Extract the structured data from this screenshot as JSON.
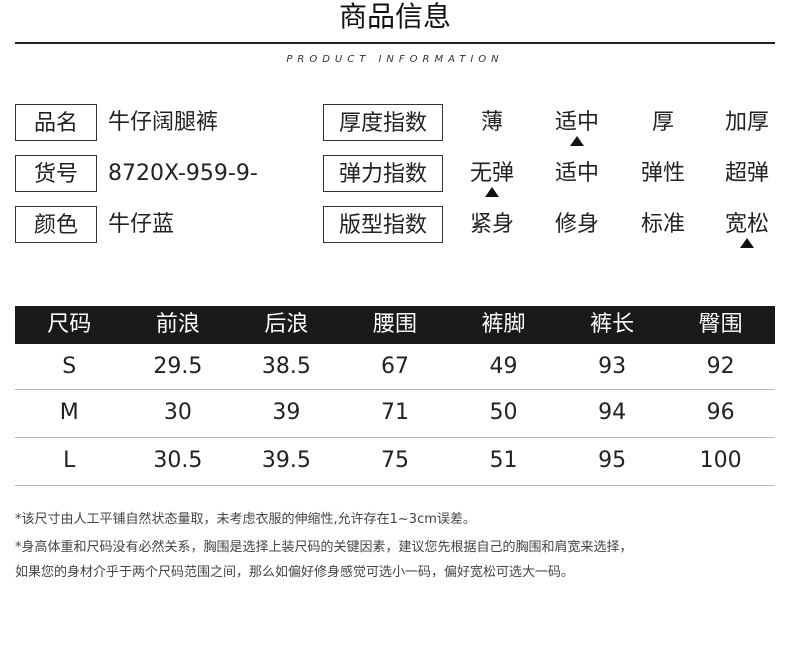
{
  "header": {
    "title": "商品信息",
    "subtitle": "PRODUCT INFORMATION"
  },
  "info": [
    {
      "label": "品名",
      "value": "牛仔阔腿裤"
    },
    {
      "label": "货号",
      "value": "8720X-959-9-"
    },
    {
      "label": "颜色",
      "value": "牛仔蓝"
    }
  ],
  "indices": [
    {
      "label": "厚度指数",
      "options": [
        "薄",
        "适中",
        "厚",
        "加厚"
      ],
      "selected": 1
    },
    {
      "label": "弹力指数",
      "options": [
        "无弹",
        "适中",
        "弹性",
        "超弹"
      ],
      "selected": 0
    },
    {
      "label": "版型指数",
      "options": [
        "紧身",
        "修身",
        "标准",
        "宽松"
      ],
      "selected": 3
    }
  ],
  "size_table": {
    "headers": [
      "尺码",
      "前浪",
      "后浪",
      "腰围",
      "裤脚",
      "裤长",
      "臀围"
    ],
    "rows": [
      [
        "S",
        "29.5",
        "38.5",
        "67",
        "49",
        "93",
        "92"
      ],
      [
        "M",
        "30",
        "39",
        "71",
        "50",
        "94",
        "96"
      ],
      [
        "L",
        "30.5",
        "39.5",
        "75",
        "51",
        "95",
        "100"
      ]
    ]
  },
  "notes": [
    "*该尺寸由人工平铺自然状态量取，未考虑衣服的伸缩性,允许存在1~3cm误差。",
    "*身高体重和尺码没有必然关系，胸围是选择上装尺码的关键因素，建议您先根据自己的胸围和肩宽来选择，",
    " 如果您的身材介乎于两个尺码范围之间，那么如偏好修身感觉可选小一码，偏好宽松可选大一码。"
  ]
}
